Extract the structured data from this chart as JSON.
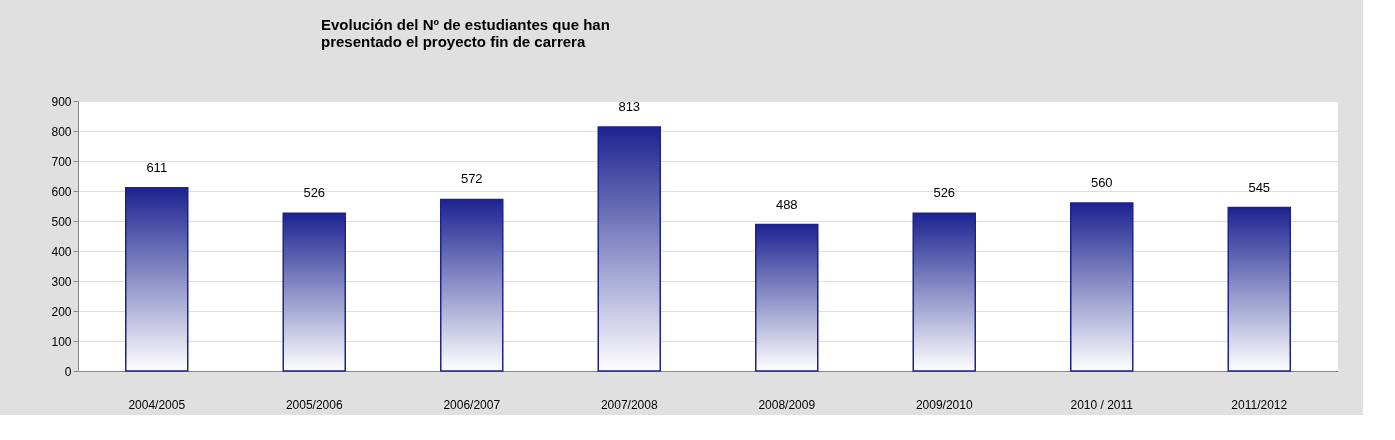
{
  "chart_data": {
    "type": "bar",
    "title": [
      "Evolución del Nº de estudiantes que han",
      "presentado el proyecto fin de carrera"
    ],
    "categories": [
      "2004/2005",
      "2005/2006",
      "2006/2007",
      "2007/2008",
      "2008/2009",
      "2009/2010",
      "2010 / 2011",
      "2011/2012"
    ],
    "values": [
      611,
      526,
      572,
      813,
      488,
      526,
      560,
      545
    ],
    "color": "#1c2390",
    "ylim": [
      0,
      900
    ],
    "yticks": [
      0,
      100,
      200,
      300,
      400,
      500,
      600,
      700,
      800,
      900
    ],
    "grid": "y",
    "data_labels": true
  }
}
